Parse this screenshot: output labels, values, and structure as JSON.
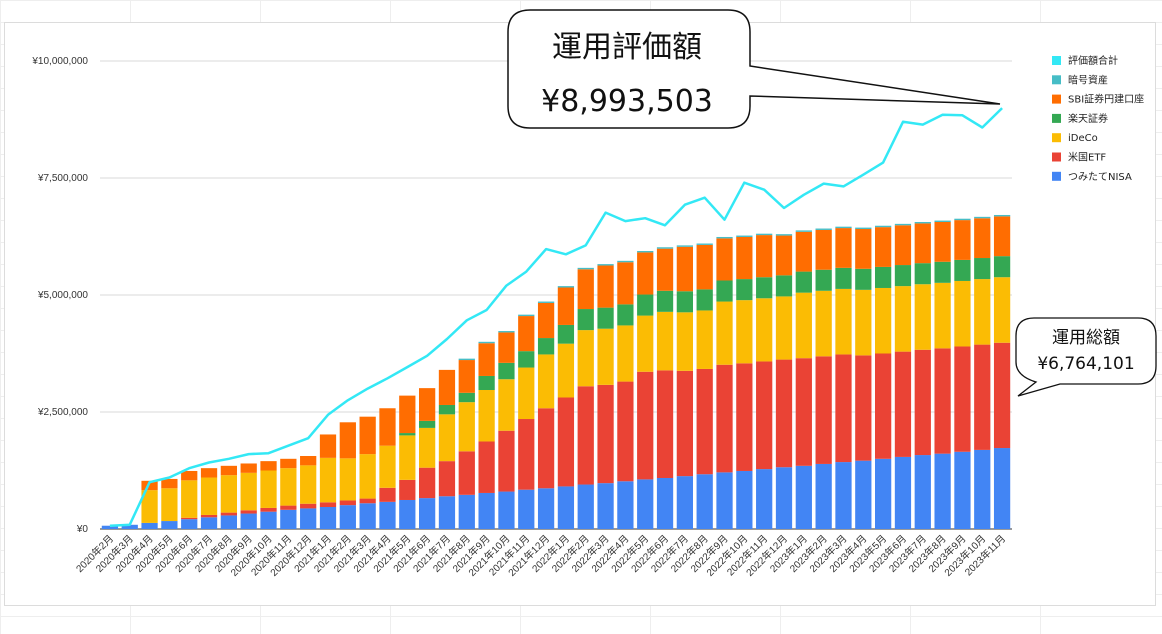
{
  "chart_data": {
    "type": "bar",
    "subtype": "stacked-bar-with-line",
    "categories": [
      "2020年2月",
      "2020年3月",
      "2020年4月",
      "2020年5月",
      "2020年6月",
      "2020年7月",
      "2020年8月",
      "2020年9月",
      "2020年10月",
      "2020年11月",
      "2020年12月",
      "2021年1月",
      "2021年2月",
      "2021年3月",
      "2021年4月",
      "2021年5月",
      "2021年6月",
      "2021年7月",
      "2021年8月",
      "2021年9月",
      "2021年10月",
      "2021年11月",
      "2021年12月",
      "2022年1月",
      "2022年2月",
      "2022年3月",
      "2022年4月",
      "2022年5月",
      "2022年6月",
      "2022年7月",
      "2022年8月",
      "2022年9月",
      "2022年10月",
      "2022年11月",
      "2022年12月",
      "2023年1月",
      "2023年2月",
      "2023年3月",
      "2023年4月",
      "2023年5月",
      "2023年6月",
      "2023年7月",
      "2023年8月",
      "2023年9月",
      "2023年10月",
      "2023年11月"
    ],
    "series": [
      {
        "name": "つみたてNISA",
        "color": "#4285f4",
        "values": [
          70000,
          90000,
          130000,
          170000,
          210000,
          250000,
          290000,
          330000,
          370000,
          410000,
          440000,
          470000,
          510000,
          550000,
          580000,
          620000,
          660000,
          700000,
          730000,
          770000,
          800000,
          840000,
          870000,
          910000,
          950000,
          980000,
          1020000,
          1060000,
          1090000,
          1130000,
          1170000,
          1210000,
          1240000,
          1280000,
          1320000,
          1350000,
          1390000,
          1430000,
          1460000,
          1500000,
          1540000,
          1580000,
          1610000,
          1650000,
          1690000,
          1730000
        ]
      },
      {
        "name": "米国ETF",
        "color": "#ea4335",
        "values": [
          0,
          0,
          0,
          0,
          30000,
          50000,
          60000,
          70000,
          80000,
          90000,
          100000,
          100000,
          100000,
          100000,
          300000,
          430000,
          650000,
          750000,
          930000,
          1100000,
          1300000,
          1510000,
          1710000,
          1900000,
          2100000,
          2100000,
          2130000,
          2300000,
          2300000,
          2250000,
          2250000,
          2300000,
          2300000,
          2300000,
          2300000,
          2300000,
          2300000,
          2300000,
          2250000,
          2250000,
          2250000,
          2250000,
          2250000,
          2250000,
          2250000,
          2250000
        ]
      },
      {
        "name": "iDeCo",
        "color": "#fbbc04",
        "values": [
          0,
          0,
          700000,
          700000,
          800000,
          800000,
          800000,
          800000,
          800000,
          800000,
          820000,
          950000,
          900000,
          950000,
          900000,
          950000,
          850000,
          1000000,
          1050000,
          1100000,
          1100000,
          1100000,
          1150000,
          1150000,
          1200000,
          1200000,
          1200000,
          1200000,
          1250000,
          1250000,
          1250000,
          1350000,
          1350000,
          1350000,
          1350000,
          1400000,
          1400000,
          1400000,
          1400000,
          1400000,
          1400000,
          1400000,
          1400000,
          1400000,
          1400000,
          1400000
        ]
      },
      {
        "name": "楽天証券",
        "color": "#34a853",
        "values": [
          0,
          0,
          0,
          0,
          0,
          0,
          0,
          0,
          0,
          0,
          0,
          0,
          0,
          0,
          0,
          50000,
          150000,
          200000,
          200000,
          300000,
          350000,
          350000,
          350000,
          400000,
          450000,
          450000,
          450000,
          450000,
          450000,
          450000,
          450000,
          450000,
          450000,
          450000,
          450000,
          450000,
          450000,
          450000,
          450000,
          450000,
          450000,
          450000,
          450000,
          450000,
          450000,
          450000
        ]
      },
      {
        "name": "SBI証券円建口座",
        "color": "#ff6d01",
        "values": [
          0,
          0,
          200000,
          200000,
          200000,
          200000,
          200000,
          200000,
          200000,
          200000,
          200000,
          500000,
          770000,
          800000,
          800000,
          800000,
          700000,
          750000,
          700000,
          700000,
          650000,
          750000,
          750000,
          800000,
          850000,
          900000,
          900000,
          900000,
          900000,
          950000,
          950000,
          900000,
          900000,
          900000,
          850000,
          850000,
          850000,
          850000,
          850000,
          850000,
          850000,
          850000,
          850000,
          850000,
          850000,
          850000
        ]
      },
      {
        "name": "暗号資産",
        "color": "#46bdc6",
        "values": [
          0,
          0,
          0,
          0,
          0,
          0,
          0,
          0,
          0,
          0,
          0,
          0,
          0,
          0,
          0,
          0,
          0,
          0,
          30000,
          30000,
          30000,
          30000,
          30000,
          30000,
          30000,
          30000,
          30000,
          30000,
          30000,
          30000,
          30000,
          30000,
          30000,
          30000,
          30000,
          30000,
          30000,
          30000,
          30000,
          30000,
          30000,
          30000,
          30000,
          30000,
          30000,
          30000
        ]
      }
    ],
    "line": {
      "name": "評価額合計",
      "color": "#33e8f5",
      "values": [
        70000,
        90000,
        1000000,
        1100000,
        1300000,
        1420000,
        1500000,
        1600000,
        1620000,
        1780000,
        1940000,
        2440000,
        2750000,
        3000000,
        3220000,
        3460000,
        3700000,
        4060000,
        4460000,
        4680000,
        5200000,
        5500000,
        5980000,
        5870000,
        6060000,
        6760000,
        6580000,
        6640000,
        6490000,
        6930000,
        7080000,
        6610000,
        7400000,
        7250000,
        6860000,
        7140000,
        7380000,
        7320000,
        7570000,
        7830000,
        8700000,
        8640000,
        8850000,
        8840000,
        8580000,
        8993503
      ]
    },
    "ylim": [
      0,
      10000000
    ],
    "yticks": [
      "¥0",
      "¥2,500,000",
      "¥5,000,000",
      "¥7,500,000",
      "¥10,000,000"
    ],
    "ytick_values": [
      0,
      2500000,
      5000000,
      7500000,
      10000000
    ],
    "grid": true,
    "legend_position": "right",
    "legend": [
      "評価額合計",
      "暗号資産",
      "SBI証券円建口座",
      "楽天証券",
      "iDeCo",
      "米国ETF",
      "つみたてNISA"
    ],
    "callouts": [
      {
        "title": "運用評価額",
        "value": "¥8,993,503"
      },
      {
        "title": "運用総額",
        "value": "¥6,764,101"
      }
    ]
  }
}
